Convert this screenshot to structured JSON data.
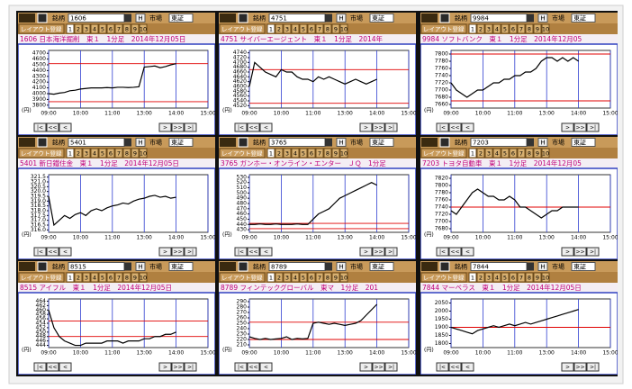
{
  "toolbar": {
    "stock_label": "銘柄",
    "h_button": "H",
    "market_label": "市場",
    "layout_register": "レイアウト登録",
    "layout_numbers": [
      "1",
      "2",
      "3",
      "4",
      "5",
      "6",
      "7",
      "8",
      "9",
      "10"
    ],
    "nav_buttons": [
      "|<",
      "<<",
      "<",
      ">",
      ">>",
      ">|"
    ],
    "yen_label": "(円)"
  },
  "time_axis": {
    "xlim": [
      0,
      300
    ],
    "xticks": [
      {
        "value": 0,
        "label": "09:00"
      },
      {
        "value": 60,
        "label": "10:00"
      },
      {
        "value": 120,
        "label": "11:00"
      },
      {
        "value": 180,
        "label": "13:00"
      },
      {
        "value": 240,
        "label": "14:00"
      },
      {
        "value": 300,
        "label": "15:00"
      }
    ],
    "x": [
      0,
      10,
      20,
      30,
      40,
      50,
      60,
      70,
      80,
      90,
      100,
      110,
      120,
      130,
      140,
      150,
      160,
      170,
      180,
      190,
      200,
      210,
      220,
      230,
      240
    ]
  },
  "panels": [
    {
      "code": "1606",
      "market": "東証",
      "title": "1606 日本海洋掘削　東１　1分足　2014年12月05日",
      "chart": {
        "type": "line",
        "color": "#000000",
        "ref_color": "#e00000",
        "ylim": [
          3750,
          4750
        ],
        "yticks": [
          3800,
          3900,
          4000,
          4100,
          4200,
          4300,
          4400,
          4500,
          4600,
          4700
        ],
        "ref_lines": [
          4520,
          3860
        ],
        "values": [
          4000,
          3990,
          4010,
          4020,
          4050,
          4060,
          4080,
          4090,
          4100,
          4100,
          4100,
          4105,
          4100,
          4110,
          4110,
          4105,
          4110,
          4120,
          4460,
          4470,
          4480,
          4450,
          4470,
          4500,
          4520
        ]
      }
    },
    {
      "code": "4751",
      "market": "東証",
      "title": "4751 サイバーエージェント　東１　1分足　2014年",
      "chart": {
        "type": "line",
        "color": "#000000",
        "ref_color": "#e00000",
        "ylim": [
          4510,
          4750
        ],
        "yticks": [
          4520,
          4540,
          4560,
          4580,
          4600,
          4620,
          4640,
          4660,
          4680,
          4700,
          4720,
          4740
        ],
        "ref_lines": [
          4670,
          4530
        ],
        "values": [
          4600,
          4700,
          4680,
          4660,
          4650,
          4640,
          4670,
          4660,
          4660,
          4640,
          4630,
          4630,
          4620,
          4640,
          4630,
          4640,
          4630,
          4620,
          4610,
          4620,
          4630,
          4620,
          4610,
          4620,
          4630
        ]
      }
    },
    {
      "code": "9984",
      "market": "東証",
      "title": "9984 ソフトバンク　東１　1分足　2014年12月05",
      "chart": {
        "type": "line",
        "color": "#000000",
        "ref_color": "#e00000",
        "ylim": [
          7650,
          7810
        ],
        "yticks": [
          7660,
          7680,
          7700,
          7720,
          7740,
          7760,
          7780,
          7800
        ],
        "ref_lines": [
          7800,
          7670
        ],
        "values": [
          7720,
          7700,
          7690,
          7680,
          7690,
          7700,
          7700,
          7710,
          7720,
          7720,
          7730,
          7730,
          7740,
          7740,
          7750,
          7750,
          7760,
          7780,
          7790,
          7790,
          7780,
          7790,
          7780,
          7790,
          7780
        ]
      }
    },
    {
      "code": "5401",
      "market": "東証",
      "title": "5401 新日鐵住金　東１　1分足　2014年12月05日",
      "chart": {
        "type": "line",
        "color": "#000000",
        "ref_color": "#e00000",
        "ylim": [
          315.75,
          321.75
        ],
        "yticks": [
          {
            "value": 316,
            "label": "316.0"
          },
          316.5,
          {
            "value": 317,
            "label": "317.0"
          },
          317.5,
          {
            "value": 318,
            "label": "318.0"
          },
          318.5,
          {
            "value": 319,
            "label": "319.0"
          },
          319.5,
          {
            "value": 320,
            "label": "320.0"
          },
          320.5,
          {
            "value": 321,
            "label": "321.0"
          },
          321.5
        ],
        "values": [
          319.5,
          316.5,
          317.0,
          317.5,
          317.2,
          317.6,
          317.8,
          317.5,
          318.0,
          318.2,
          318.0,
          318.3,
          318.5,
          318.6,
          318.8,
          318.7,
          319.0,
          319.2,
          319.3,
          319.5,
          319.6,
          319.4,
          319.5,
          319.3,
          319.4
        ]
      }
    },
    {
      "code": "3765",
      "market": "東証",
      "title": "3765 ガンホー・オンライン・エンター　ＪＱ　1分足",
      "chart": {
        "type": "line",
        "color": "#000000",
        "ref_color": "#e00000",
        "ylim": [
          425,
          535
        ],
        "yticks": [
          430,
          440,
          450,
          460,
          470,
          480,
          490,
          500,
          510,
          520,
          530
        ],
        "ref_lines": [
          442,
          432
        ],
        "values": [
          440,
          440,
          441,
          440,
          440,
          441,
          440,
          440,
          440,
          441,
          440,
          440,
          450,
          460,
          465,
          470,
          480,
          490,
          495,
          500,
          505,
          510,
          515,
          520,
          515
        ]
      }
    },
    {
      "code": "7203",
      "market": "東証",
      "title": "7203 トヨタ自動車　東１　1分足　2014年12月05",
      "chart": {
        "type": "line",
        "color": "#000000",
        "ref_color": "#e00000",
        "ylim": [
          7670,
          7830
        ],
        "yticks": [
          7680,
          7700,
          7720,
          7740,
          7760,
          7780,
          7800,
          7820
        ],
        "ref_lines": [
          7740
        ],
        "values": [
          7730,
          7720,
          7740,
          7760,
          7780,
          7790,
          7780,
          7770,
          7770,
          7760,
          7760,
          7770,
          7760,
          7740,
          7740,
          7730,
          7720,
          7710,
          7720,
          7730,
          7730,
          7740,
          7740,
          7740,
          7740
        ]
      }
    },
    {
      "code": "8515",
      "market": "東証",
      "title": "8515 アイフル　東１　1分足　2014年12月05日",
      "chart": {
        "type": "line",
        "color": "#000000",
        "ref_color": "#e00000",
        "ylim": [
          443,
          465
        ],
        "yticks": [
          444,
          446,
          448,
          450,
          452,
          454,
          456,
          458,
          460,
          462,
          464
        ],
        "ref_lines": [
          455,
          448
        ],
        "values": [
          460,
          452,
          448,
          446,
          445,
          444,
          444,
          445,
          445,
          445,
          445,
          446,
          446,
          446,
          445,
          446,
          446,
          446,
          447,
          447,
          448,
          448,
          449,
          449,
          450
        ]
      }
    },
    {
      "code": "8789",
      "market": "東証",
      "title": "8789 フィンテックグローバル　東マ　1分足　201",
      "chart": {
        "type": "line",
        "color": "#000000",
        "ref_color": "#e00000",
        "ylim": [
          205,
          295
        ],
        "yticks": [
          210,
          220,
          230,
          240,
          250,
          260,
          270,
          280,
          290
        ],
        "ref_lines": [
          252,
          220
        ],
        "values": [
          225,
          222,
          220,
          222,
          220,
          221,
          222,
          225,
          220,
          222,
          221,
          222,
          250,
          252,
          250,
          248,
          250,
          248,
          246,
          248,
          250,
          255,
          265,
          275,
          285
        ]
      }
    },
    {
      "code": "7844",
      "market": "東証",
      "title": "7844 マーベラス　東１　1分足　2014年12月05日",
      "chart": {
        "type": "line",
        "color": "#000000",
        "ref_color": "#e00000",
        "ylim": [
          1775,
          2075
        ],
        "yticks": [
          1800,
          1850,
          1900,
          1950,
          2000,
          2050
        ],
        "ref_lines": [
          1900
        ],
        "values": [
          1900,
          1890,
          1880,
          1870,
          1860,
          1880,
          1890,
          1900,
          1910,
          1900,
          1910,
          1920,
          1910,
          1920,
          1930,
          1920,
          1930,
          1940,
          1950,
          1960,
          1970,
          1980,
          1990,
          2000,
          2010
        ]
      }
    }
  ]
}
